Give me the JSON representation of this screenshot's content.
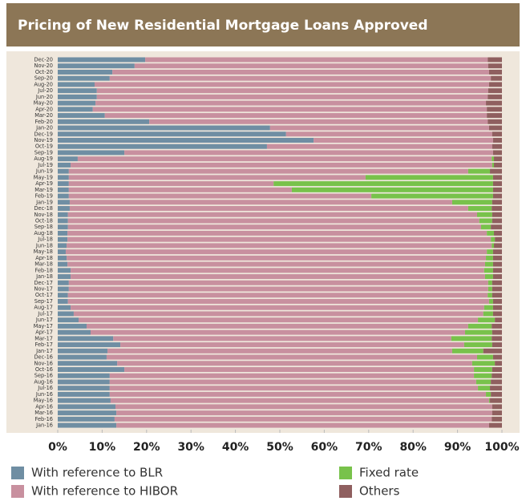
{
  "chart_data": {
    "type": "stacked_barh",
    "title": "Pricing of New Residential Mortgage Loans Approved",
    "categories": [
      "Dec-20",
      "Nov-20",
      "Oct-20",
      "Sep-20",
      "Aug-20",
      "Jul-20",
      "Jun-20",
      "May-20",
      "Apr-20",
      "Mar-20",
      "Feb-20",
      "Jan-20",
      "Dec-19",
      "Nov-19",
      "Oct-19",
      "Sep-19",
      "Aug-19",
      "Jul-19",
      "Jun-19",
      "May-19",
      "Apr-19",
      "Mar-19",
      "Feb-19",
      "Jan-19",
      "Dec-18",
      "Nov-18",
      "Oct-18",
      "Sep-18",
      "Aug-18",
      "Jul-18",
      "Jun-18",
      "May-18",
      "Apr-18",
      "Mar-18",
      "Feb-18",
      "Jan-18",
      "Dec-17",
      "Nov-17",
      "Oct-17",
      "Sep-17",
      "Aug-17",
      "Jul-17",
      "Jun-17",
      "May-17",
      "Apr-17",
      "Mar-17",
      "Feb-17",
      "Jan-17",
      "Dec-16",
      "Nov-16",
      "Oct-16",
      "Sep-16",
      "Aug-16",
      "Jul-16",
      "Jun-16",
      "May-16",
      "Apr-16",
      "Mar-16",
      "Feb-16",
      "Jan-16"
    ],
    "series": [
      {
        "name": "With reference to BLR",
        "color": "#6f8ea3",
        "values": [
          19.7,
          17.3,
          12.3,
          11.7,
          8.3,
          8.8,
          8.8,
          8.5,
          7.9,
          10.6,
          20.6,
          47.8,
          51.4,
          57.6,
          47.1,
          15.0,
          4.5,
          2.9,
          2.5,
          2.5,
          2.5,
          2.5,
          2.5,
          2.7,
          2.7,
          2.3,
          2.3,
          2.3,
          2.2,
          2.2,
          2.0,
          1.8,
          2.0,
          2.2,
          2.9,
          2.9,
          2.5,
          2.5,
          2.3,
          2.3,
          2.9,
          3.6,
          4.7,
          6.5,
          7.4,
          12.5,
          14.1,
          11.2,
          11.0,
          13.4,
          15.0,
          11.7,
          11.7,
          11.7,
          11.7,
          11.9,
          13.0,
          13.2,
          12.8,
          13.2
        ]
      },
      {
        "name": "With reference to HIBOR",
        "color": "#c8909f",
        "values": [
          77.1,
          79.6,
          84.8,
          85.8,
          88.8,
          88.1,
          88.0,
          87.9,
          88.7,
          86.0,
          76.2,
          49.3,
          46.4,
          40.4,
          50.7,
          83.0,
          93.2,
          94.9,
          89.9,
          66.8,
          46.1,
          50.2,
          68.1,
          86.1,
          89.7,
          92.1,
          92.6,
          93.0,
          94.4,
          95.3,
          95.7,
          94.8,
          94.4,
          94.0,
          93.1,
          93.3,
          94.4,
          94.4,
          94.5,
          94.8,
          93.1,
          92.2,
          89.9,
          85.9,
          84.3,
          76.1,
          77.4,
          77.6,
          83.4,
          79.9,
          78.7,
          82.0,
          82.5,
          82.9,
          84.7,
          85.2,
          84.8,
          84.6,
          84.9,
          83.9
        ]
      },
      {
        "name": "Fixed rate",
        "color": "#78c24b",
        "values": [
          0,
          0,
          0,
          0,
          0,
          0,
          0,
          0,
          0,
          0,
          0,
          0,
          0,
          0,
          0,
          0,
          0.5,
          0.4,
          4.9,
          28.7,
          49.4,
          45.3,
          27.4,
          9.0,
          5.3,
          3.4,
          2.9,
          2.2,
          1.6,
          0.9,
          0.5,
          1.4,
          1.6,
          1.8,
          2.0,
          1.8,
          0.9,
          0.9,
          1.0,
          0.9,
          2.0,
          2.2,
          3.8,
          5.3,
          6.1,
          9.1,
          6.3,
          7.0,
          3.6,
          5.1,
          4.1,
          4.0,
          3.3,
          2.7,
          1.1,
          0.2,
          0,
          0,
          0,
          0
        ]
      },
      {
        "name": "Others",
        "color": "#8f5f5f",
        "values": [
          3.2,
          3.1,
          2.9,
          2.5,
          2.9,
          3.1,
          3.2,
          3.6,
          3.4,
          3.4,
          3.2,
          2.9,
          2.2,
          2.0,
          2.2,
          2.0,
          1.8,
          1.8,
          2.7,
          2.0,
          2.0,
          2.0,
          2.0,
          2.2,
          2.3,
          2.2,
          2.2,
          2.5,
          1.8,
          1.6,
          1.8,
          2.0,
          2.0,
          2.0,
          2.0,
          2.0,
          2.2,
          2.2,
          2.2,
          2.0,
          2.0,
          2.0,
          1.6,
          2.3,
          2.2,
          2.3,
          2.2,
          4.2,
          2.0,
          1.6,
          2.2,
          2.3,
          2.5,
          2.7,
          2.5,
          2.7,
          2.2,
          2.2,
          2.3,
          2.9
        ]
      }
    ],
    "xlim": [
      0,
      100
    ],
    "xticks": [
      {
        "value": 0,
        "label": "0%"
      },
      {
        "value": 10,
        "label": "10%"
      },
      {
        "value": 20,
        "label": "20%"
      },
      {
        "value": 30,
        "label": "30%"
      },
      {
        "value": 40,
        "label": "40%"
      },
      {
        "value": 50,
        "label": "50%"
      },
      {
        "value": 60,
        "label": "60%"
      },
      {
        "value": 70,
        "label": "70%"
      },
      {
        "value": 80,
        "label": "80%"
      },
      {
        "value": 90,
        "label": "90%"
      },
      {
        "value": 100,
        "label": "100%"
      }
    ],
    "grid": false
  }
}
